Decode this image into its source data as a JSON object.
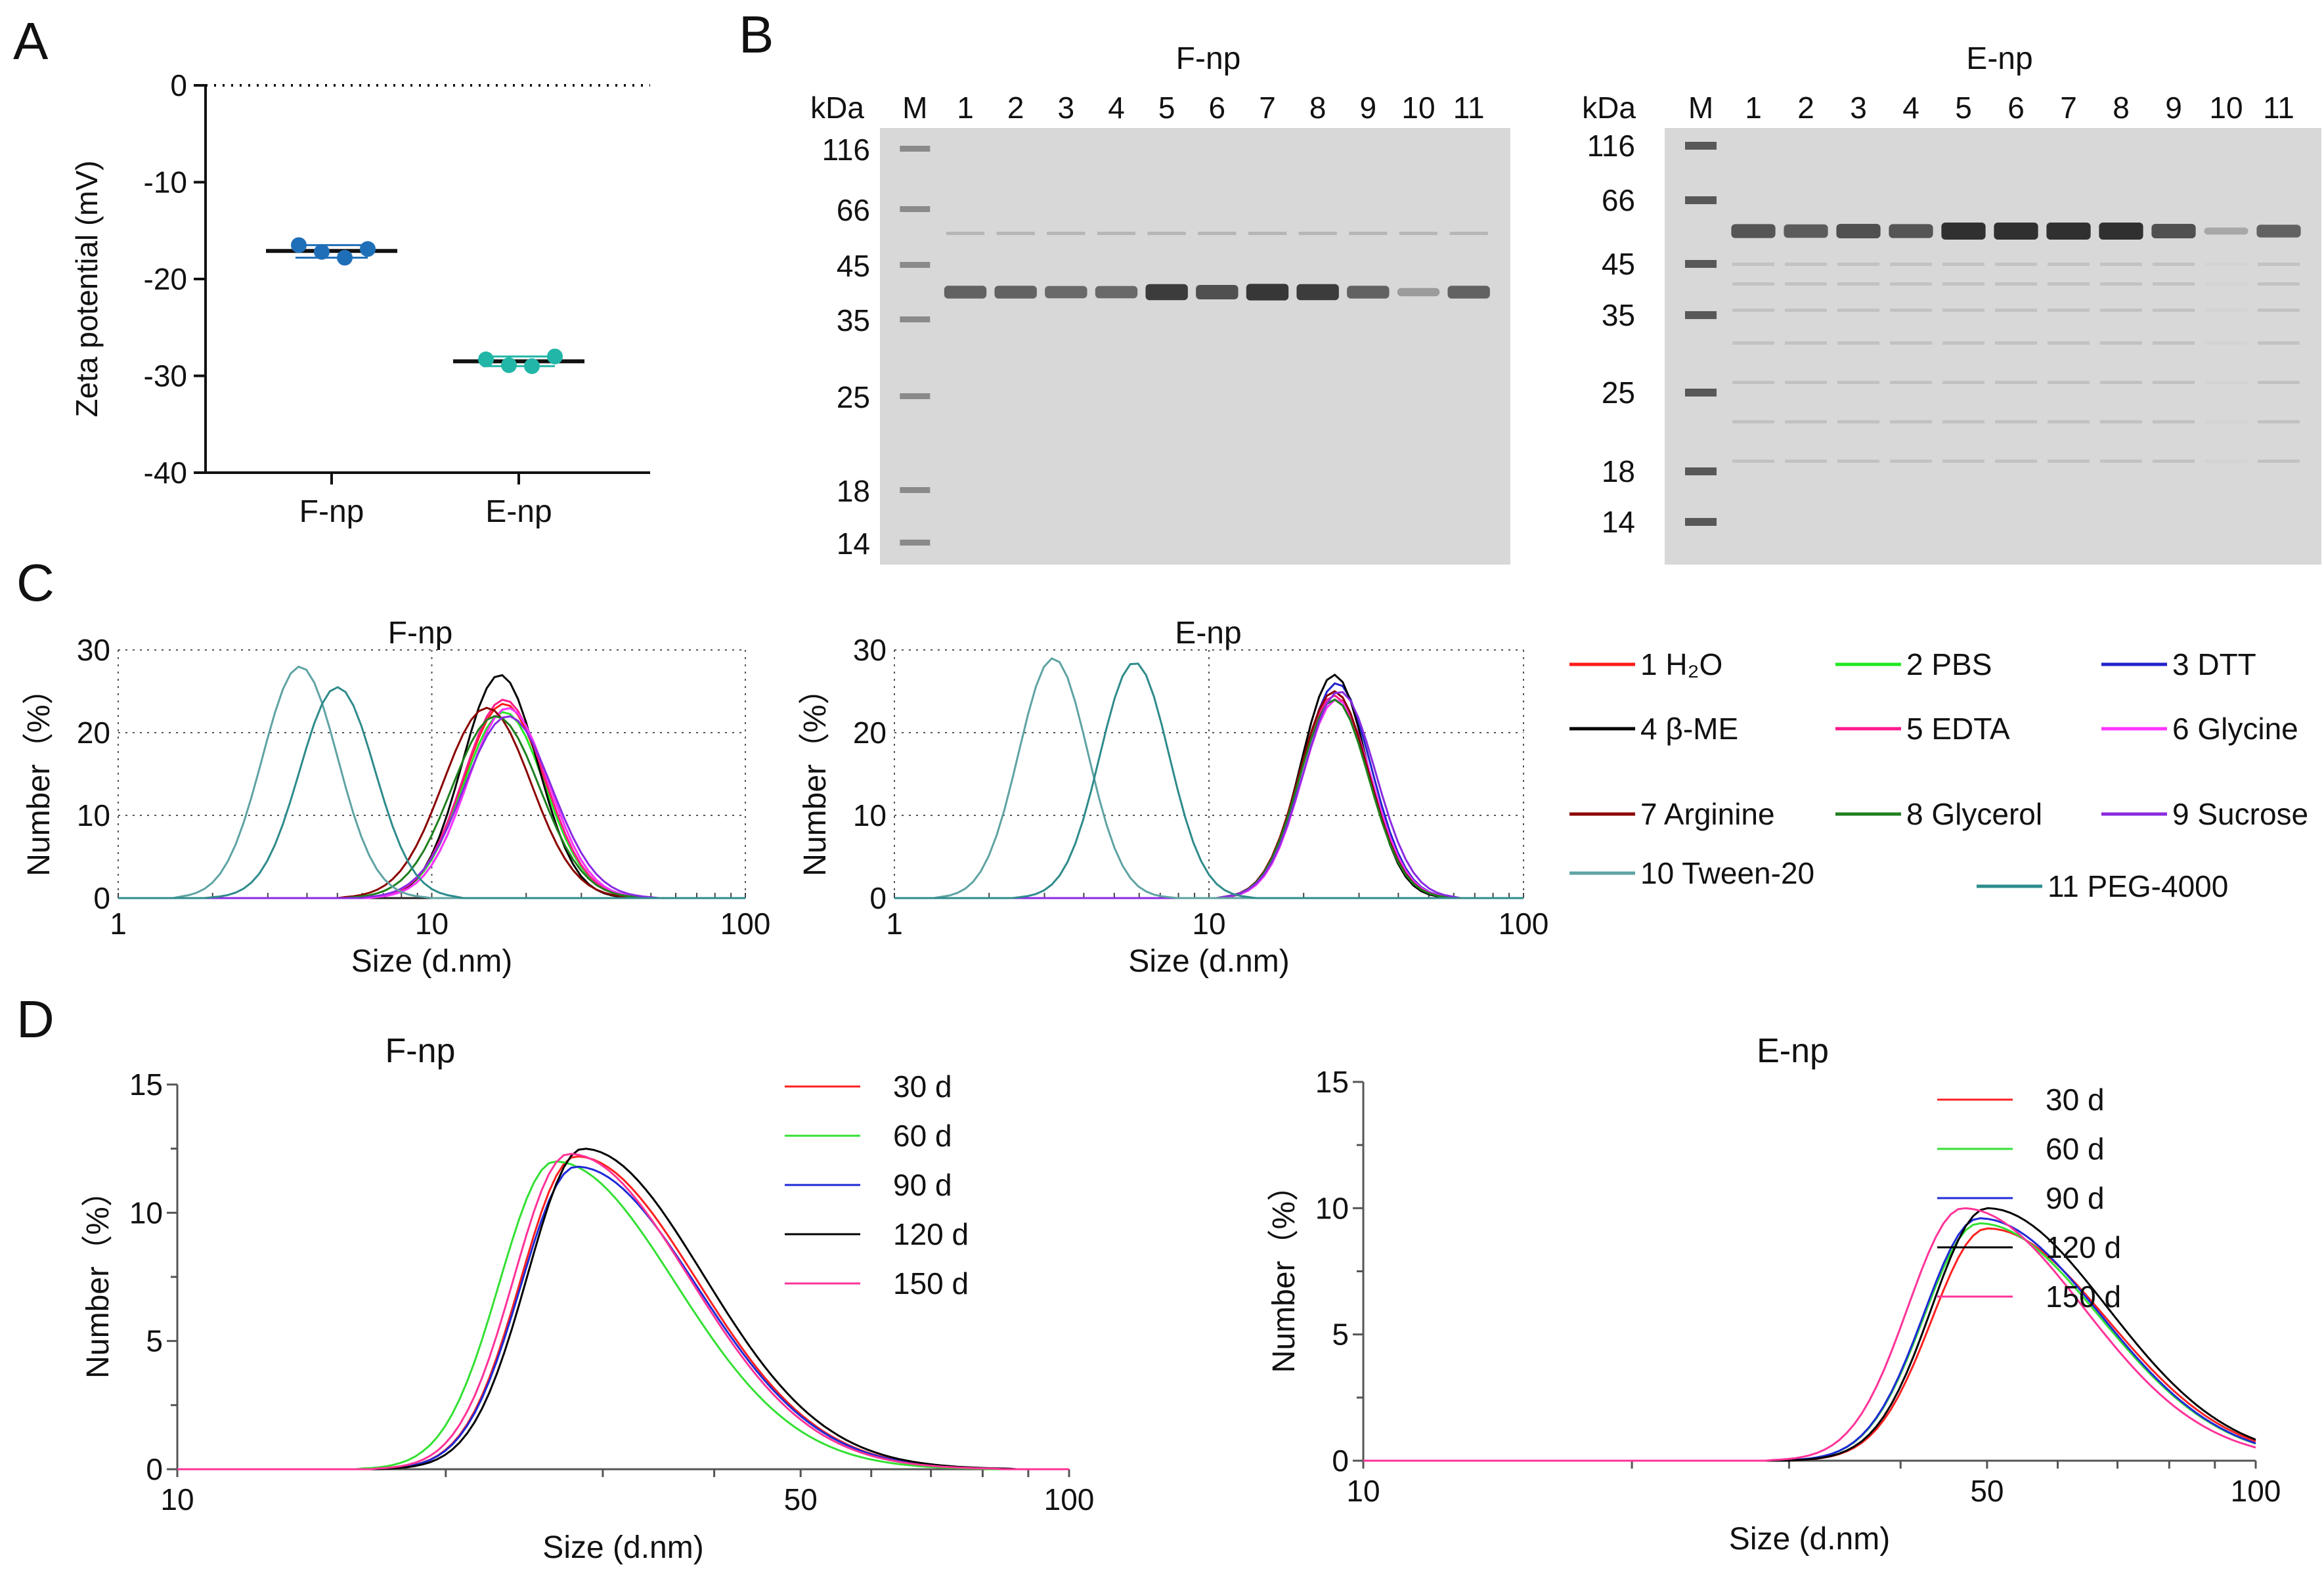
{
  "colors": {
    "f_dot": "#1f6fb8",
    "e_dot": "#22b6a8",
    "gel_bg": "#d8d8d8",
    "band": "#303030",
    "c_series": [
      "#ff1a1a",
      "#22e822",
      "#2222cc",
      "#000000",
      "#ff1a8c",
      "#ff33ff",
      "#8b0000",
      "#1f7f1f",
      "#8a2be2",
      "#5fa3a3",
      "#2e8b8b"
    ],
    "d_series": [
      "#ff2020",
      "#33e033",
      "#1f2ad6",
      "#000000",
      "#ff3399"
    ]
  },
  "panelA": {
    "letter": "A",
    "ylabel": "Zeta potential (mV)",
    "yticks": [
      "0",
      "-10",
      "-20",
      "-30",
      "-40"
    ],
    "groups": [
      "F-np",
      "E-np"
    ],
    "chart_data": {
      "type": "scatter",
      "ylabel": "Zeta potential (mV)",
      "ylim": [
        -40,
        0
      ],
      "categories": [
        "F-np",
        "E-np"
      ],
      "points": [
        {
          "group": "F-np",
          "values": [
            -16.5,
            -17.2,
            -17.8,
            -16.9
          ]
        },
        {
          "group": "E-np",
          "values": [
            -28.3,
            -28.9,
            -29.0,
            -28.0
          ]
        }
      ],
      "means": [
        -17.1,
        -28.5
      ]
    }
  },
  "panelB": {
    "letter": "B",
    "gels": [
      {
        "title": "F-np",
        "header_kda": "kDa",
        "lane_labels": [
          "M",
          "1",
          "2",
          "3",
          "4",
          "5",
          "6",
          "7",
          "8",
          "9",
          "10",
          "11"
        ],
        "markers": [
          "116",
          "66",
          "45",
          "35",
          "25",
          "18",
          "14"
        ],
        "band_intensity": [
          0.6,
          0.6,
          0.55,
          0.55,
          0.9,
          0.75,
          0.95,
          0.9,
          0.6,
          0.15,
          0.6
        ]
      },
      {
        "title": "E-np",
        "header_kda": "kDa",
        "lane_labels": [
          "M",
          "1",
          "2",
          "3",
          "4",
          "5",
          "6",
          "7",
          "8",
          "9",
          "10",
          "11"
        ],
        "markers": [
          "116",
          "66",
          "45",
          "35",
          "25",
          "18",
          "14"
        ],
        "band_intensity": [
          0.7,
          0.65,
          0.75,
          0.7,
          1.0,
          1.0,
          1.0,
          1.0,
          0.75,
          0.05,
          0.6
        ]
      }
    ]
  },
  "panelC": {
    "letter": "C",
    "ylabel": "Number（%）",
    "xlabel": "Size (d.nm)",
    "yticks": [
      "0",
      "10",
      "20",
      "30"
    ],
    "xticks": [
      "1",
      "10",
      "100"
    ],
    "legend": [
      "1 H₂O",
      "2 PBS",
      "3 DTT",
      "4 β-ME",
      "5 EDTA",
      "6 Glycine",
      "7 Arginine",
      "8 Glycerol",
      "9 Sucrose",
      "10 Tween-20",
      "11 PEG-4000"
    ],
    "chart_data": [
      {
        "type": "line",
        "title": "F-np",
        "xscale": "log",
        "xlim": [
          1,
          100
        ],
        "ylim": [
          0,
          30
        ],
        "xlabel": "Size (d.nm)",
        "ylabel": "Number（%）",
        "series": [
          {
            "name": "1 H2O",
            "peak": 17,
            "height": 23.5,
            "width": 0.13
          },
          {
            "name": "2 PBS",
            "peak": 17,
            "height": 22.5,
            "width": 0.13
          },
          {
            "name": "3 DTT",
            "peak": 17.5,
            "height": 23,
            "width": 0.13
          },
          {
            "name": "4 β-ME",
            "peak": 16.5,
            "height": 27,
            "width": 0.12
          },
          {
            "name": "5 EDTA",
            "peak": 17,
            "height": 24,
            "width": 0.13
          },
          {
            "name": "6 Glycine",
            "peak": 17.5,
            "height": 23,
            "width": 0.13
          },
          {
            "name": "7 Arginine",
            "peak": 15,
            "height": 23,
            "width": 0.14
          },
          {
            "name": "8 Glycerol",
            "peak": 16,
            "height": 22,
            "width": 0.14
          },
          {
            "name": "9 Sucrose",
            "peak": 17.5,
            "height": 22,
            "width": 0.14
          },
          {
            "name": "10 Tween-20",
            "peak": 3.8,
            "height": 28,
            "width": 0.12
          },
          {
            "name": "11 PEG-4000",
            "peak": 5.0,
            "height": 25.5,
            "width": 0.12
          }
        ]
      },
      {
        "type": "line",
        "title": "E-np",
        "xscale": "log",
        "xlim": [
          1,
          100
        ],
        "ylim": [
          0,
          30
        ],
        "xlabel": "Size (d.nm)",
        "ylabel": "Number（%）",
        "series": [
          {
            "name": "1 H2O",
            "peak": 25,
            "height": 25,
            "width": 0.11
          },
          {
            "name": "2 PBS",
            "peak": 25,
            "height": 24,
            "width": 0.11
          },
          {
            "name": "3 DTT",
            "peak": 25.5,
            "height": 26,
            "width": 0.11
          },
          {
            "name": "4 β-ME",
            "peak": 25,
            "height": 27,
            "width": 0.105
          },
          {
            "name": "5 EDTA",
            "peak": 25,
            "height": 24.5,
            "width": 0.11
          },
          {
            "name": "6 Glycine",
            "peak": 25.5,
            "height": 24,
            "width": 0.11
          },
          {
            "name": "7 Arginine",
            "peak": 25,
            "height": 25,
            "width": 0.11
          },
          {
            "name": "8 Glycerol",
            "peak": 25,
            "height": 24,
            "width": 0.11
          },
          {
            "name": "9 Sucrose",
            "peak": 26,
            "height": 25,
            "width": 0.115
          },
          {
            "name": "10 Tween-20",
            "peak": 3.2,
            "height": 29,
            "width": 0.11
          },
          {
            "name": "11 PEG-4000",
            "peak": 5.8,
            "height": 28.5,
            "width": 0.11
          }
        ]
      }
    ]
  },
  "panelD": {
    "letter": "D",
    "ylabel": "Number（%）",
    "xlabel": "Size (d.nm)",
    "legend": [
      "30 d",
      "60 d",
      "90 d",
      "120 d",
      "150 d"
    ],
    "chart_data": [
      {
        "type": "line",
        "title": "F-np",
        "xscale": "log",
        "xlim": [
          10,
          100
        ],
        "ylim": [
          0,
          15
        ],
        "xticks": [
          "10",
          "50",
          "100"
        ],
        "yticks": [
          "0",
          "5",
          "10",
          "15"
        ],
        "xlabel": "Size (d.nm)",
        "ylabel": "Number（%）",
        "series": [
          {
            "name": "30 d",
            "peak": 28,
            "height": 12.2
          },
          {
            "name": "60 d",
            "peak": 26.5,
            "height": 12.0
          },
          {
            "name": "90 d",
            "peak": 28,
            "height": 11.8
          },
          {
            "name": "120 d",
            "peak": 28.5,
            "height": 12.5
          },
          {
            "name": "150 d",
            "peak": 27.5,
            "height": 12.3
          }
        ]
      },
      {
        "type": "line",
        "title": "E-np",
        "xscale": "log",
        "xlim": [
          10,
          100
        ],
        "ylim": [
          0,
          15
        ],
        "xticks": [
          "10",
          "50",
          "100"
        ],
        "yticks": [
          "0",
          "5",
          "10",
          "15"
        ],
        "xlabel": "Size (d.nm)",
        "ylabel": "Number（%）",
        "series": [
          {
            "name": "30 d",
            "peak": 50,
            "height": 9.2
          },
          {
            "name": "60 d",
            "peak": 49,
            "height": 9.4
          },
          {
            "name": "90 d",
            "peak": 49,
            "height": 9.6
          },
          {
            "name": "120 d",
            "peak": 50,
            "height": 10.0
          },
          {
            "name": "150 d",
            "peak": 47,
            "height": 10.0
          }
        ]
      }
    ]
  }
}
